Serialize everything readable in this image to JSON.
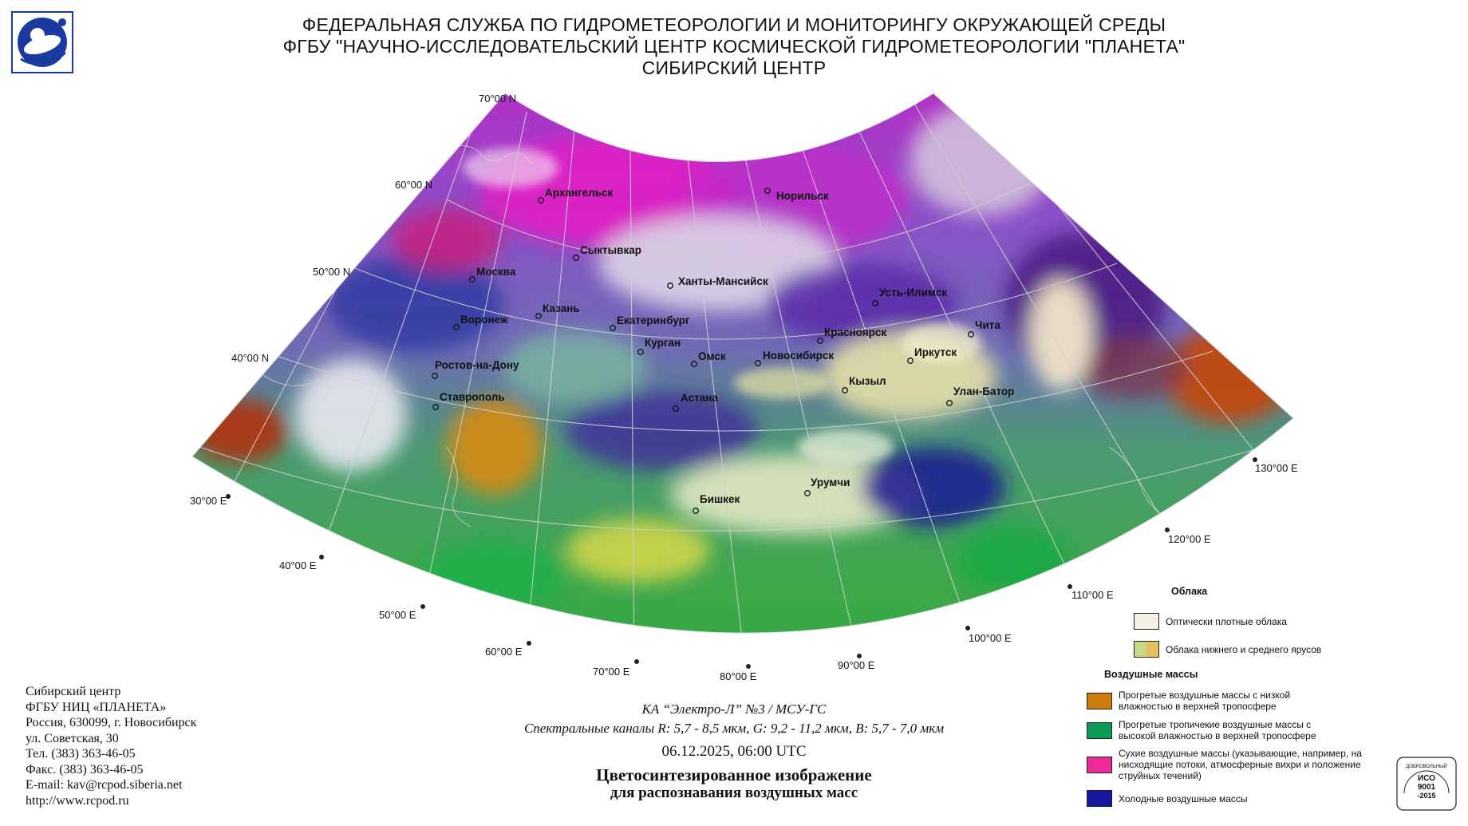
{
  "header": {
    "line1": "ФЕДЕРАЛЬНАЯ СЛУЖБА ПО ГИДРОМЕТЕОРОЛОГИИ И МОНИТОРИНГУ ОКРУЖАЮЩЕЙ СРЕДЫ",
    "line2": "ФГБУ \"НАУЧНО-ИССЛЕДОВАТЕЛЬСКИЙ ЦЕНТР КОСМИЧЕСКОЙ ГИДРОМЕТЕОРОЛОГИИ \"ПЛАНЕТА\"",
    "line3": "СИБИРСКИЙ ЦЕНТР"
  },
  "map": {
    "lat_labels": [
      "70°00 N",
      "60°00 N",
      "50°00 N",
      "40°00 N"
    ],
    "lon_labels": [
      "30°00 E",
      "40°00 E",
      "50°00 E",
      "60°00 E",
      "70°00 E",
      "80°00 E",
      "90°00 E",
      "100°00 E",
      "110°00 E",
      "120°00 E",
      "130°00 E"
    ],
    "cities": [
      "Архангельск",
      "Норильск",
      "Сыктывкар",
      "Москва",
      "Ханты-Мансийск",
      "Казань",
      "Воронеж",
      "Екатеринбург",
      "Курган",
      "Омск",
      "Новосибирск",
      "Красноярск",
      "Усть-Илимск",
      "Чита",
      "Иркутск",
      "Ростов-на-Дону",
      "Ставрополь",
      "Кызыл",
      "Улан-Батор",
      "Астана",
      "Урумчи",
      "Бишкек"
    ]
  },
  "contact": {
    "line1": "Сибирский центр",
    "line2": "ФГБУ НИЦ «ПЛАНЕТА»",
    "line3": "Россия, 630099, г. Новосибирск",
    "line4": "ул. Советская, 30",
    "line5": "Тел. (383) 363-46-05",
    "line6": "Факс. (383) 363-46-05",
    "line7": "E-mail: kav@rcpod.siberia.net",
    "line8": "http://www.rcpod.ru"
  },
  "caption": {
    "satellite": "КА “Электро-Л” №3 / МСУ-ГС",
    "channels": "Спектральные каналы R: 5,7 - 8,5 мкм, G: 9,2 - 11,2 мкм, B: 5,7 - 7,0 мкм",
    "datetime": "06.12.2025, 06:00 UTC",
    "title1": "Цветосинтезированное изображение",
    "title2": "для распознавания воздушных масс"
  },
  "legend": {
    "clouds_header": "Облака",
    "clouds": [
      {
        "label": "Оптически плотные облака",
        "color": "#f1f0e2"
      },
      {
        "label": "Облака нижнего и среднего ярусов",
        "color": "#c9d98a",
        "color2": "#e8c060"
      }
    ],
    "airmass_header": "Воздушные массы",
    "airmasses": [
      {
        "label": "Прогретые воздушные массы с низкой влажностью в верхней тропосфере",
        "color": "#cc7a0a"
      },
      {
        "label": "Прогретые тропичекие воздушные массы с высокой влажностью в верхней тропосфере",
        "color": "#0a9c55"
      },
      {
        "label": "Сухие воздушные массы (указывающие, например, на нисходящие потоки, атмосферные вихри и положение струйных течений)",
        "color": "#ee2a9a"
      },
      {
        "label": "Холодные воздушные массы",
        "color": "#1418a0"
      }
    ]
  },
  "iso_badge": {
    "line1": "ДОБРОВОЛЬНЫЙ",
    "line2": "ИСО",
    "line3": "9001",
    "line4": "-2015"
  }
}
